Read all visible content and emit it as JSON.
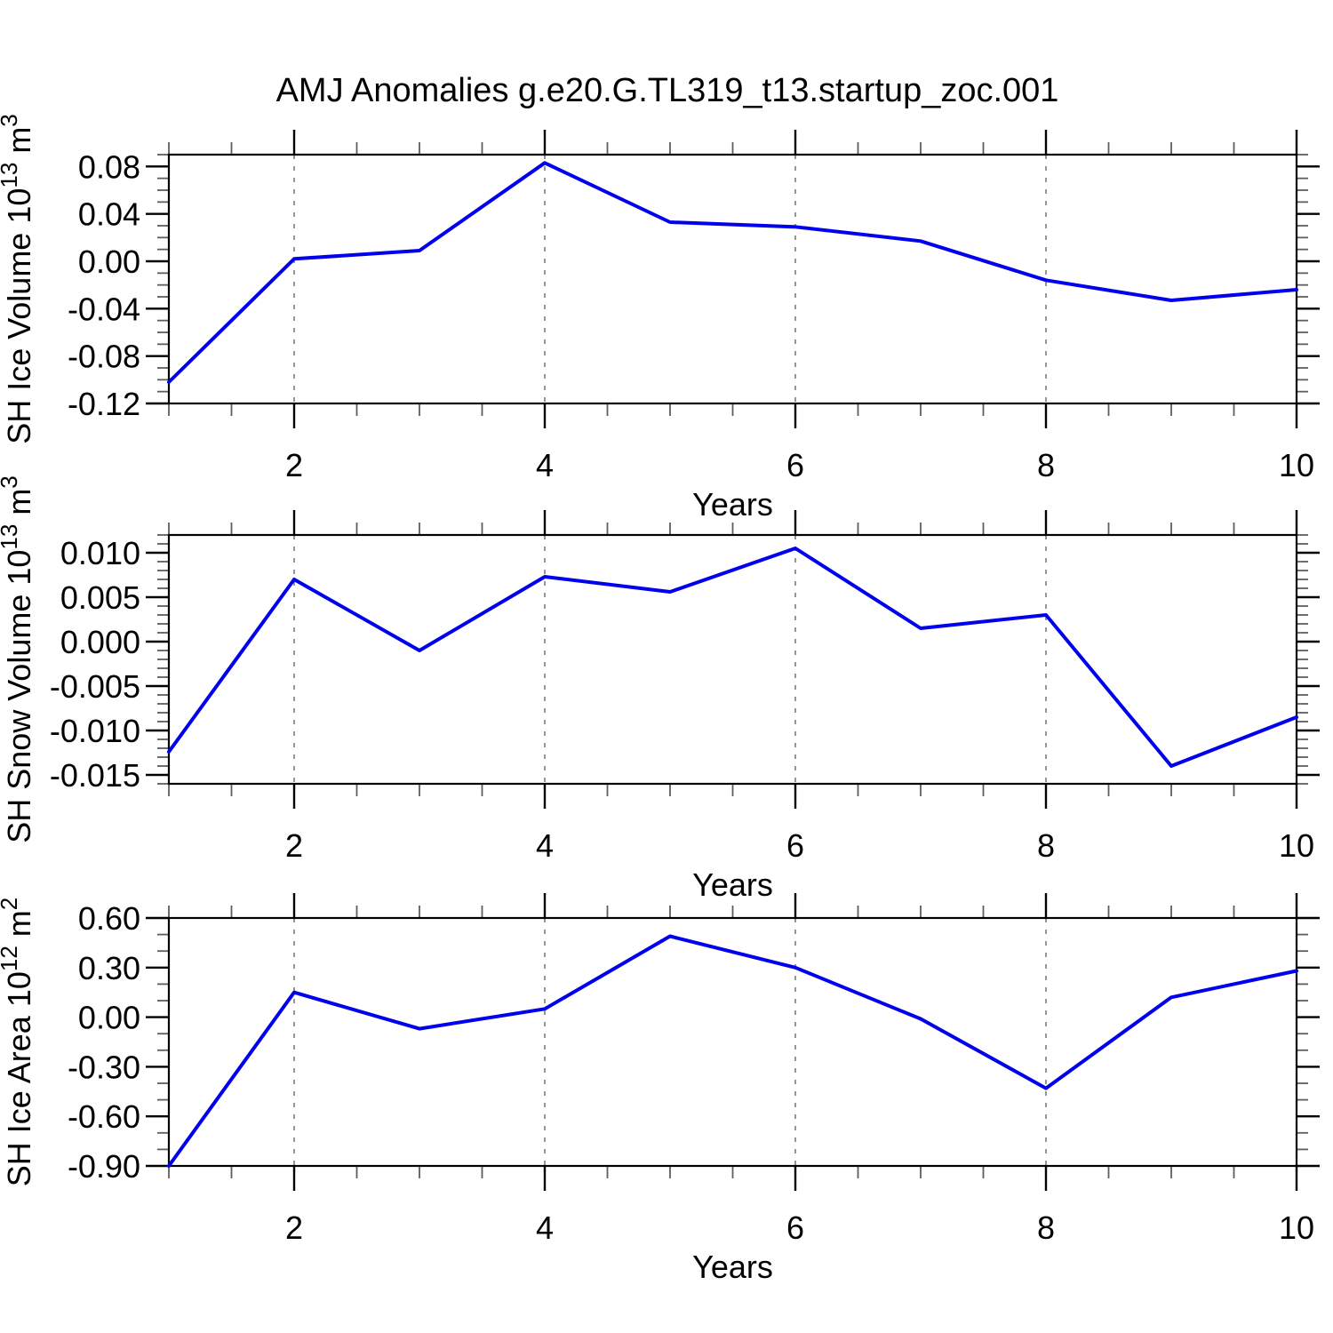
{
  "title": "AMJ Anomalies g.e20.G.TL319_t13.startup_zoc.001",
  "colors": {
    "series_line": "#0000EE",
    "grid_line": "#7b7b7b",
    "axis_frame": "#000000",
    "major_tick": "#000000",
    "minor_tick": "#5e5e5e",
    "background": "#ffffff"
  },
  "chart_data": [
    {
      "type": "line",
      "name": "sh-ice-volume",
      "ylabel_text": "SH Ice Volume 10^13 m^3",
      "ylabel_segments": [
        {
          "t": "SH Ice Volume 10"
        },
        {
          "t": "13",
          "sup": true
        },
        {
          "t": " m"
        },
        {
          "t": "3",
          "sup": true
        }
      ],
      "xlabel": "Years",
      "x": [
        1,
        2,
        3,
        4,
        5,
        6,
        7,
        8,
        9,
        10
      ],
      "values": [
        -0.102,
        0.002,
        0.009,
        0.083,
        0.033,
        0.029,
        0.017,
        -0.016,
        -0.033,
        -0.024
      ],
      "xlim": [
        1,
        10
      ],
      "ylim": [
        -0.12,
        0.09
      ],
      "xticks": {
        "major": [
          2,
          4,
          6,
          8,
          10
        ],
        "labels": [
          "2",
          "4",
          "6",
          "8",
          "10"
        ],
        "minor_step": 0.5
      },
      "yticks": {
        "major": [
          0.08,
          0.04,
          0.0,
          -0.04,
          -0.08,
          -0.12
        ],
        "labels": [
          "0.08",
          "0.04",
          "0.00",
          "-0.04",
          "-0.08",
          "-0.12"
        ],
        "minor_step": 0.01
      },
      "grid_x": [
        2,
        4,
        6,
        8
      ],
      "grid": "vertical-dashed",
      "legend": "none"
    },
    {
      "type": "line",
      "name": "sh-snow-volume",
      "ylabel_text": "SH Snow Volume 10^13 m^3",
      "ylabel_segments": [
        {
          "t": "SH Snow Volume 10"
        },
        {
          "t": "13",
          "sup": true
        },
        {
          "t": " m"
        },
        {
          "t": "3",
          "sup": true
        }
      ],
      "xlabel": "Years",
      "x": [
        1,
        2,
        3,
        4,
        5,
        6,
        7,
        8,
        9,
        10
      ],
      "values": [
        -0.0124,
        0.007,
        -0.001,
        0.0073,
        0.0056,
        0.0105,
        0.0015,
        0.003,
        -0.014,
        -0.0085
      ],
      "xlim": [
        1,
        10
      ],
      "ylim": [
        -0.016,
        0.012
      ],
      "xticks": {
        "major": [
          2,
          4,
          6,
          8,
          10
        ],
        "labels": [
          "2",
          "4",
          "6",
          "8",
          "10"
        ],
        "minor_step": 0.5
      },
      "yticks": {
        "major": [
          0.01,
          0.005,
          0.0,
          -0.005,
          -0.01,
          -0.015
        ],
        "labels": [
          "0.010",
          "0.005",
          "0.000",
          "-0.005",
          "-0.010",
          "-0.015"
        ],
        "minor_step": 0.001
      },
      "grid_x": [
        2,
        4,
        6,
        8
      ],
      "grid": "vertical-dashed",
      "legend": "none"
    },
    {
      "type": "line",
      "name": "sh-ice-area",
      "ylabel_text": "SH Ice Area 10^12 m^2",
      "ylabel_segments": [
        {
          "t": "SH Ice Area 10"
        },
        {
          "t": "12",
          "sup": true
        },
        {
          "t": " m"
        },
        {
          "t": "2",
          "sup": true
        }
      ],
      "xlabel": "Years",
      "x": [
        1,
        2,
        3,
        4,
        5,
        6,
        7,
        8,
        9,
        10
      ],
      "values": [
        -0.9,
        0.15,
        -0.07,
        0.05,
        0.49,
        0.3,
        -0.01,
        -0.43,
        0.12,
        0.28
      ],
      "xlim": [
        1,
        10
      ],
      "ylim": [
        -0.9,
        0.6
      ],
      "xticks": {
        "major": [
          2,
          4,
          6,
          8,
          10
        ],
        "labels": [
          "2",
          "4",
          "6",
          "8",
          "10"
        ],
        "minor_step": 0.5
      },
      "yticks": {
        "major": [
          0.6,
          0.3,
          0.0,
          -0.3,
          -0.6,
          -0.9
        ],
        "labels": [
          "0.60",
          "0.30",
          "0.00",
          "-0.30",
          "-0.60",
          "-0.90"
        ],
        "minor_step": 0.1
      },
      "grid_x": [
        2,
        4,
        6,
        8
      ],
      "grid": "vertical-dashed",
      "legend": "none"
    }
  ]
}
